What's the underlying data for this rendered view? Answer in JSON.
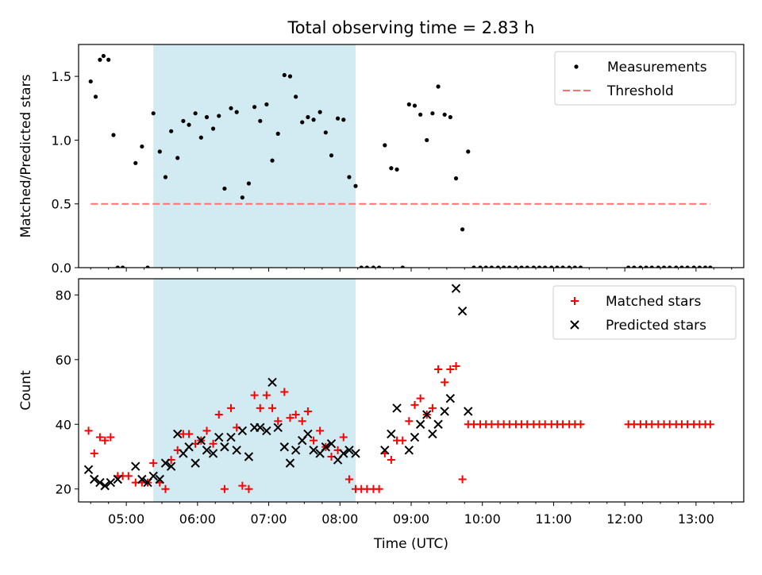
{
  "title": "Total observing time = 2.83 h",
  "colors": {
    "highlight": "#add8e6",
    "measurement": "#000000",
    "threshold": "#ff7070",
    "matched": "#ff0000",
    "predicted": "#000000"
  },
  "chart_data": [
    {
      "type": "scatter",
      "panel": "top",
      "ylabel": "Matched/Predicted stars",
      "xlabel": "",
      "xlim": [
        4.33,
        13.67
      ],
      "ylim": [
        0,
        1.75
      ],
      "yticks": [
        0.0,
        0.5,
        1.0,
        1.5
      ],
      "ytick_labels": [
        "0.0",
        "0.5",
        "1.0",
        "1.5"
      ],
      "shaded_x": [
        5.38,
        8.22
      ],
      "legend_position": "upper right",
      "legend": [
        "Measurements",
        "Threshold"
      ],
      "threshold": {
        "name": "Threshold",
        "value": 0.5,
        "x": [
          4.5,
          13.2
        ]
      },
      "series": [
        {
          "name": "Measurements",
          "x": [
            4.5,
            4.57,
            4.63,
            4.68,
            4.75,
            4.82,
            4.88,
            4.95,
            5.13,
            5.22,
            5.3,
            5.38,
            5.47,
            5.55,
            5.63,
            5.72,
            5.8,
            5.88,
            5.97,
            6.05,
            6.13,
            6.22,
            6.3,
            6.38,
            6.47,
            6.55,
            6.63,
            6.72,
            6.8,
            6.88,
            6.97,
            7.05,
            7.13,
            7.22,
            7.3,
            7.38,
            7.47,
            7.55,
            7.63,
            7.72,
            7.8,
            7.88,
            7.97,
            8.05,
            8.13,
            8.22,
            8.3,
            8.38,
            8.47,
            8.55,
            8.63,
            8.72,
            8.8,
            8.88,
            8.97,
            9.05,
            9.13,
            9.22,
            9.3,
            9.38,
            9.47,
            9.55,
            9.63,
            9.72,
            9.8,
            9.88,
            9.97,
            10.05,
            10.13,
            10.22,
            10.3,
            10.38,
            10.47,
            10.55,
            10.63,
            10.72,
            10.8,
            10.88,
            10.97,
            11.05,
            11.13,
            11.22,
            11.3,
            11.38,
            12.05,
            12.13,
            12.22,
            12.3,
            12.38,
            12.47,
            12.55,
            12.63,
            12.72,
            12.8,
            12.88,
            12.97,
            13.05,
            13.13,
            13.2
          ],
          "y": [
            1.46,
            1.34,
            1.63,
            1.66,
            1.63,
            1.04,
            0.0,
            0.0,
            0.82,
            0.95,
            0.0,
            1.21,
            0.91,
            0.71,
            1.07,
            0.86,
            1.15,
            1.12,
            1.21,
            1.02,
            1.18,
            1.09,
            1.19,
            0.62,
            1.25,
            1.22,
            0.55,
            0.66,
            1.26,
            1.15,
            1.28,
            0.84,
            1.05,
            1.51,
            1.5,
            1.34,
            1.14,
            1.18,
            1.16,
            1.22,
            1.06,
            0.88,
            1.17,
            1.16,
            0.71,
            0.64,
            0.0,
            0.0,
            0.0,
            0.0,
            0.96,
            0.78,
            0.77,
            0.0,
            1.28,
            1.27,
            1.2,
            1.0,
            1.21,
            1.42,
            1.2,
            1.18,
            0.7,
            0.3,
            0.91,
            0.0,
            0.0,
            0.0,
            0.0,
            0.0,
            0.0,
            0.0,
            0.0,
            0.0,
            0.0,
            0.0,
            0.0,
            0.0,
            0.0,
            0.0,
            0.0,
            0.0,
            0.0,
            0.0,
            0.0,
            0.0,
            0.0,
            0.0,
            0.0,
            0.0,
            0.0,
            0.0,
            0.0,
            0.0,
            0.0,
            0.0,
            0.0,
            0.0,
            0.0
          ]
        }
      ]
    },
    {
      "type": "scatter",
      "panel": "bottom",
      "ylabel": "Count",
      "xlabel": "Time (UTC)",
      "xlim": [
        4.33,
        13.67
      ],
      "ylim": [
        16,
        85
      ],
      "yticks": [
        20,
        40,
        60,
        80
      ],
      "ytick_labels": [
        "20",
        "40",
        "60",
        "80"
      ],
      "xticks": [
        5,
        6,
        7,
        8,
        9,
        10,
        11,
        12,
        13
      ],
      "xtick_labels": [
        "05:00",
        "06:00",
        "07:00",
        "08:00",
        "09:00",
        "10:00",
        "11:00",
        "12:00",
        "13:00"
      ],
      "shaded_x": [
        5.38,
        8.22
      ],
      "legend_position": "upper right",
      "legend": [
        "Matched stars",
        "Predicted stars"
      ],
      "series": [
        {
          "name": "Matched stars",
          "marker": "+",
          "x": [
            4.47,
            4.55,
            4.63,
            4.7,
            4.78,
            4.88,
            4.95,
            5.03,
            5.13,
            5.22,
            5.3,
            5.38,
            5.47,
            5.55,
            5.63,
            5.72,
            5.8,
            5.88,
            5.97,
            6.05,
            6.13,
            6.22,
            6.3,
            6.38,
            6.47,
            6.55,
            6.63,
            6.72,
            6.8,
            6.88,
            6.97,
            7.05,
            7.13,
            7.22,
            7.3,
            7.38,
            7.47,
            7.55,
            7.63,
            7.72,
            7.8,
            7.88,
            7.97,
            8.05,
            8.13,
            8.22,
            8.3,
            8.38,
            8.47,
            8.55,
            8.63,
            8.72,
            8.8,
            8.88,
            8.97,
            9.05,
            9.13,
            9.22,
            9.3,
            9.38,
            9.47,
            9.55,
            9.63,
            9.72,
            9.8,
            9.88,
            9.97,
            10.05,
            10.13,
            10.22,
            10.3,
            10.38,
            10.47,
            10.55,
            10.63,
            10.72,
            10.8,
            10.88,
            10.97,
            11.05,
            11.13,
            11.22,
            11.3,
            11.38,
            12.05,
            12.13,
            12.22,
            12.3,
            12.38,
            12.47,
            12.55,
            12.63,
            12.72,
            12.8,
            12.88,
            12.97,
            13.05,
            13.13,
            13.2
          ],
          "y": [
            38,
            31,
            36,
            35,
            36,
            24,
            24,
            24,
            22,
            22,
            22,
            28,
            22,
            20,
            29,
            32,
            37,
            37,
            34,
            35,
            38,
            34,
            43,
            20,
            45,
            39,
            21,
            20,
            49,
            45,
            49,
            45,
            41,
            50,
            42,
            43,
            41,
            44,
            35,
            38,
            33,
            30,
            32,
            36,
            23,
            20,
            20,
            20,
            20,
            20,
            31,
            29,
            35,
            35,
            41,
            46,
            48,
            43,
            45,
            57,
            53,
            57,
            58,
            23,
            40,
            40,
            40,
            40,
            40,
            40,
            40,
            40,
            40,
            40,
            40,
            40,
            40,
            40,
            40,
            40,
            40,
            40,
            40,
            40,
            40,
            40,
            40,
            40,
            40,
            40,
            40,
            40,
            40,
            40,
            40,
            40,
            40,
            40,
            40
          ]
        },
        {
          "name": "Predicted stars",
          "marker": "x",
          "x": [
            4.47,
            4.55,
            4.63,
            4.7,
            4.78,
            4.88,
            5.13,
            5.22,
            5.3,
            5.38,
            5.47,
            5.55,
            5.63,
            5.72,
            5.8,
            5.88,
            5.97,
            6.05,
            6.13,
            6.22,
            6.3,
            6.38,
            6.47,
            6.55,
            6.63,
            6.72,
            6.8,
            6.88,
            6.97,
            7.05,
            7.13,
            7.22,
            7.3,
            7.38,
            7.47,
            7.55,
            7.63,
            7.72,
            7.8,
            7.88,
            7.97,
            8.05,
            8.13,
            8.22,
            8.63,
            8.72,
            8.8,
            8.97,
            9.05,
            9.13,
            9.22,
            9.3,
            9.38,
            9.47,
            9.55,
            9.63,
            9.72,
            9.8
          ],
          "y": [
            26,
            23,
            22,
            21,
            22,
            23,
            27,
            23,
            22,
            24,
            23,
            28,
            27,
            37,
            31,
            33,
            28,
            35,
            32,
            31,
            36,
            33,
            36,
            32,
            38,
            30,
            39,
            39,
            38,
            53,
            39,
            33,
            28,
            32,
            35,
            37,
            32,
            31,
            33,
            34,
            29,
            31,
            32,
            31,
            32,
            37,
            45,
            32,
            36,
            40,
            43,
            37,
            40,
            44,
            48,
            82,
            75,
            44
          ]
        }
      ]
    }
  ]
}
